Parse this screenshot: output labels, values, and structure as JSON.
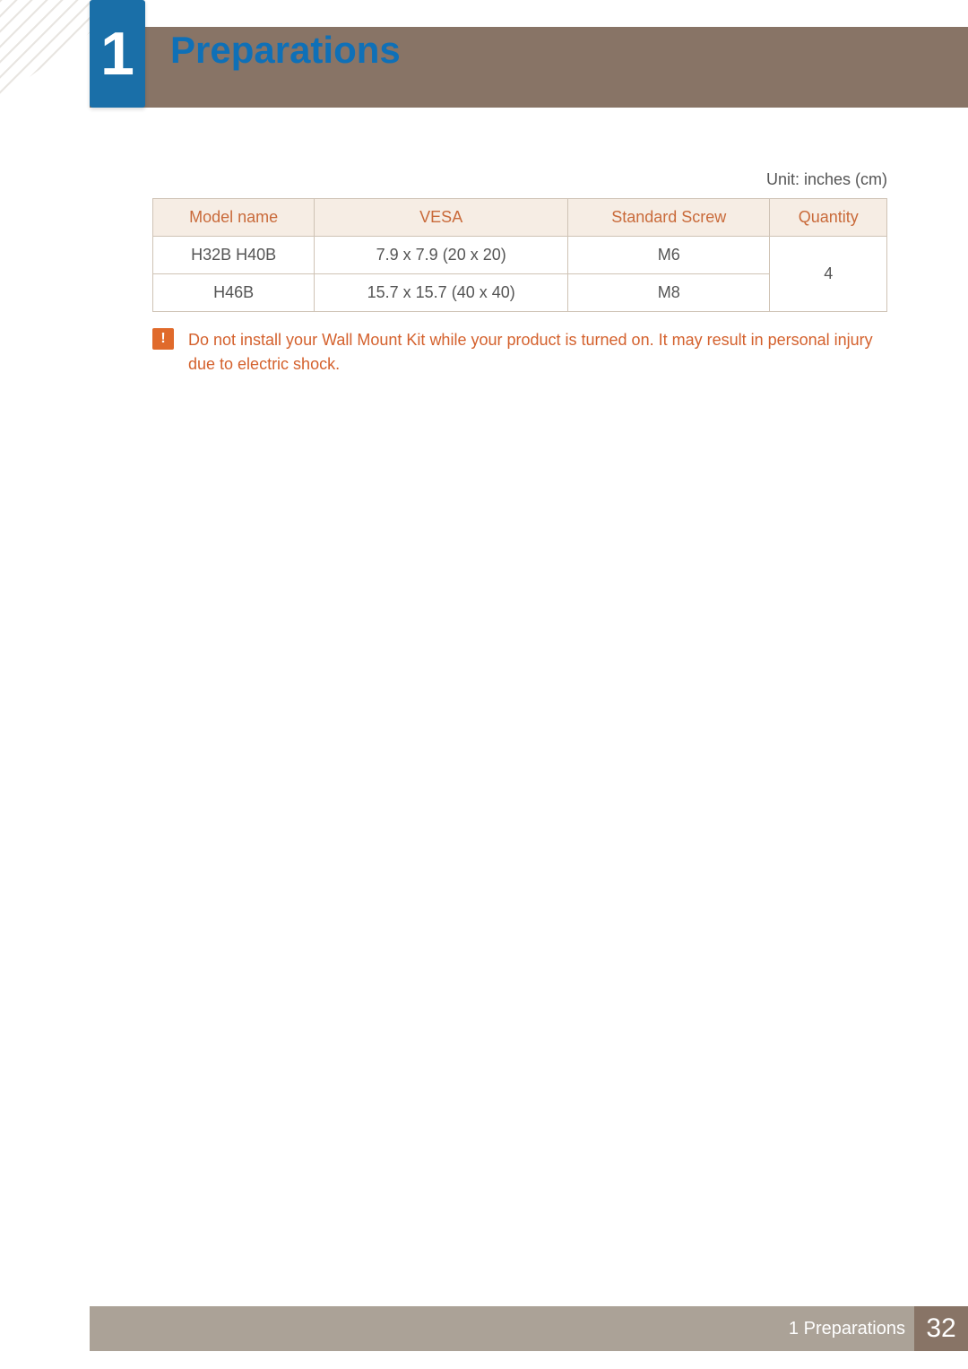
{
  "header": {
    "chapter_number": "1",
    "chapter_title": "Preparations",
    "badge_color": "#1a6fa8",
    "bar_color": "#887466",
    "title_color": "#0f70b7"
  },
  "unit_note": "Unit: inches (cm)",
  "table": {
    "header_bg": "#f6ede4",
    "header_text_color": "#c96a3a",
    "border_color": "#cfc3b5",
    "cell_text_color": "#555555",
    "columns": [
      "Model name",
      "VESA",
      "Standard Screw",
      "Quantity"
    ],
    "rows": [
      {
        "model": "H32B H40B",
        "vesa": "7.9 x 7.9 (20 x 20)",
        "screw": "M6"
      },
      {
        "model": "H46B",
        "vesa": "15.7 x 15.7 (40 x 40)",
        "screw": "M8"
      }
    ],
    "quantity_merged": "4"
  },
  "warning": {
    "icon_glyph": "!",
    "icon_bg": "#e06a2b",
    "text_color": "#d4612d",
    "text": "Do not install your Wall Mount Kit while your product is turned on. It may result in personal injury due to electric shock."
  },
  "footer": {
    "bar_color": "#aba297",
    "label": "1 Preparations",
    "page_badge_bg": "#887466",
    "page_number": "32"
  }
}
